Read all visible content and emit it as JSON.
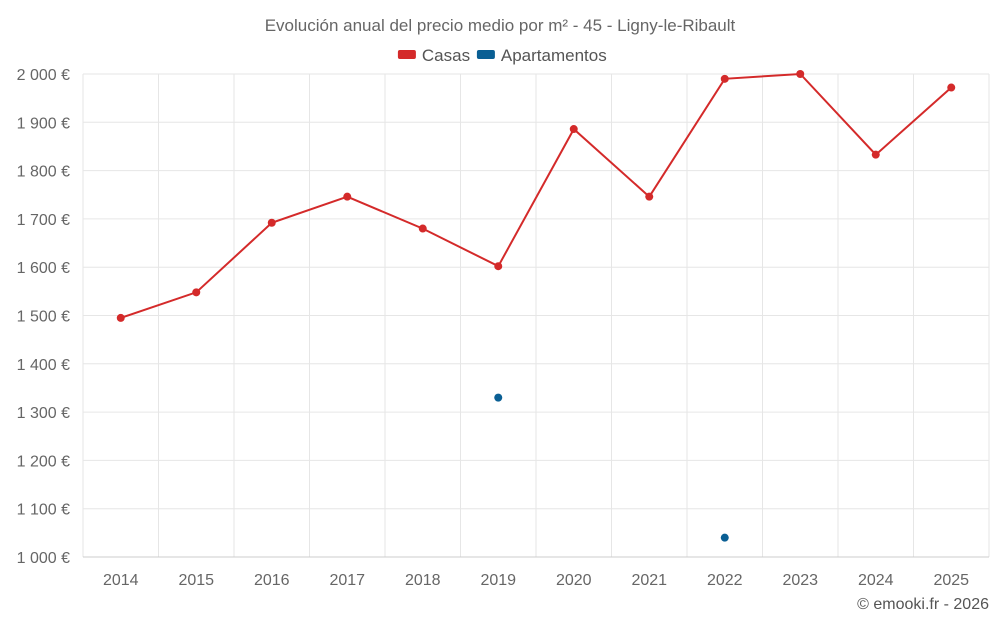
{
  "chart_data": {
    "type": "line",
    "title": "Evolución anual del precio medio por m² - 45 - Ligny-le-Ribault",
    "xlabel": "",
    "ylabel": "",
    "categories": [
      "2014",
      "2015",
      "2016",
      "2017",
      "2018",
      "2019",
      "2020",
      "2021",
      "2022",
      "2023",
      "2024",
      "2025"
    ],
    "series": [
      {
        "name": "Casas",
        "color": "#d42a2a",
        "values": [
          1495,
          1548,
          1692,
          1746,
          1680,
          1602,
          1886,
          1746,
          1990,
          2000,
          1833,
          1972
        ]
      },
      {
        "name": "Apartamentos",
        "color": "#0a5f94",
        "values": [
          null,
          null,
          null,
          null,
          null,
          1330,
          null,
          null,
          1040,
          null,
          null,
          null
        ]
      }
    ],
    "ylim": [
      1000,
      2000
    ],
    "yticks": [
      1000,
      1100,
      1200,
      1300,
      1400,
      1500,
      1600,
      1700,
      1800,
      1900,
      2000
    ],
    "ytick_labels": [
      "1 000 €",
      "1 100 €",
      "1 200 €",
      "1 300 €",
      "1 400 €",
      "1 500 €",
      "1 600 €",
      "1 700 €",
      "1 800 €",
      "1 900 €",
      "2 000 €"
    ],
    "grid": true,
    "legend_position": "top-center"
  },
  "credit": "© emooki.fr - 2026"
}
